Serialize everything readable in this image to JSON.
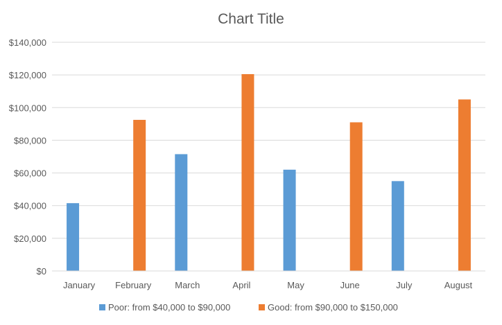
{
  "chart_data": {
    "type": "bar",
    "title": "Chart Title",
    "xlabel": "",
    "ylabel": "",
    "ylim": [
      0,
      140000
    ],
    "yticks": [
      0,
      20000,
      40000,
      60000,
      80000,
      100000,
      120000,
      140000
    ],
    "ytick_labels": [
      "$0",
      "$20,000",
      "$40,000",
      "$60,000",
      "$80,000",
      "$100,000",
      "$120,000",
      "$140,000"
    ],
    "categories": [
      "January",
      "February",
      "March",
      "April",
      "May",
      "June",
      "July",
      "August"
    ],
    "grid": true,
    "legend_position": "bottom",
    "series": [
      {
        "name": "Poor: from $40,000 to $90,000",
        "color": "#5b9bd5",
        "values": [
          41500,
          null,
          71500,
          null,
          62000,
          null,
          55000,
          null
        ]
      },
      {
        "name": "Good: from $90,000 to $150,000",
        "color": "#ed7d31",
        "values": [
          null,
          92500,
          null,
          120500,
          null,
          91000,
          null,
          105000
        ]
      }
    ]
  }
}
